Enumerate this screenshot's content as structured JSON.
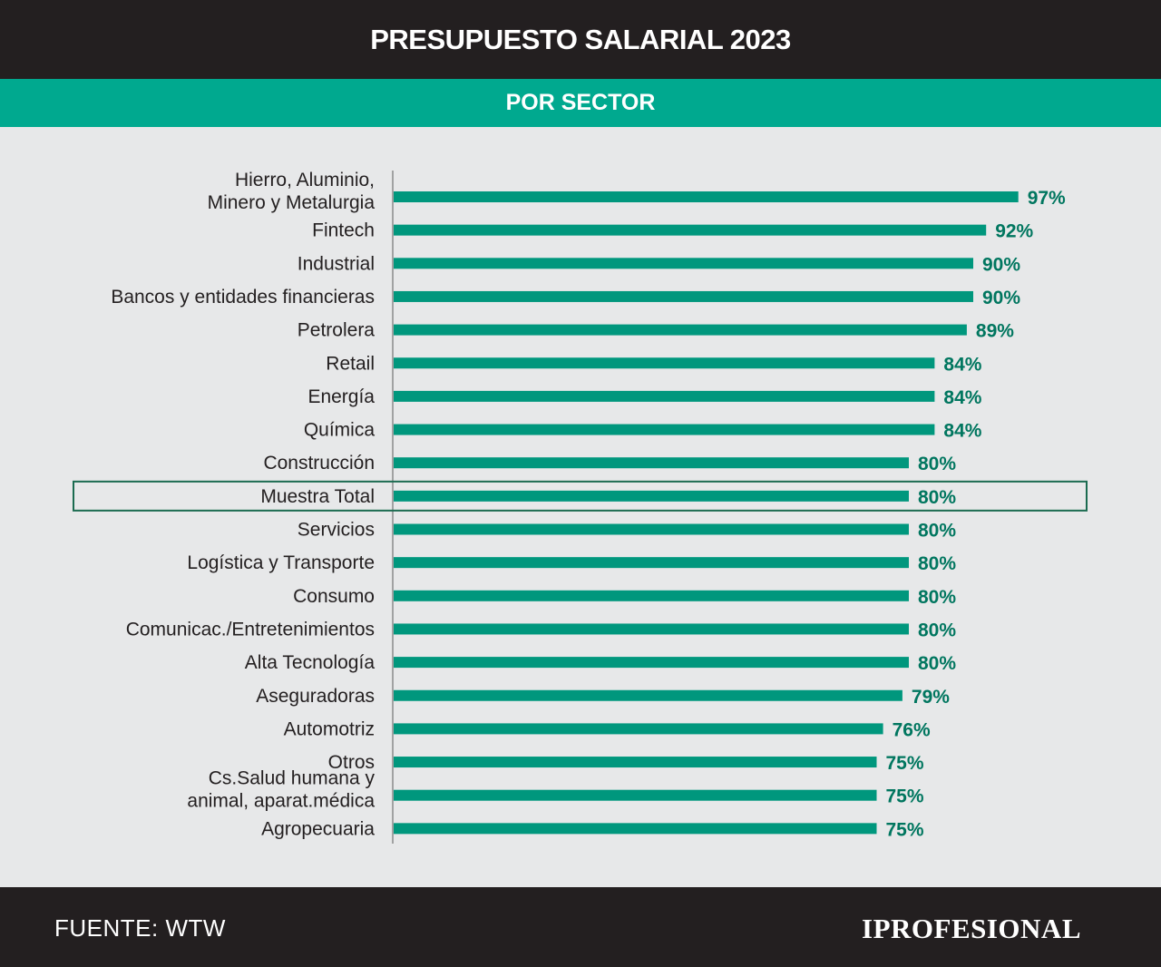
{
  "header": {
    "title": "PRESUPUESTO SALARIAL 2023"
  },
  "subheader": {
    "title": "POR SECTOR"
  },
  "chart_data": {
    "type": "bar",
    "orientation": "horizontal",
    "categories": [
      [
        "Hierro, Aluminio,",
        "Minero y Metalurgia"
      ],
      [
        "Fintech"
      ],
      [
        "Industrial"
      ],
      [
        "Bancos y entidades financieras"
      ],
      [
        "Petrolera"
      ],
      [
        "Retail"
      ],
      [
        "Energía"
      ],
      [
        "Química"
      ],
      [
        "Construcción"
      ],
      [
        "Muestra Total"
      ],
      [
        "Servicios"
      ],
      [
        "Logística y Transporte"
      ],
      [
        "Consumo"
      ],
      [
        "Comunicac./Entretenimientos"
      ],
      [
        "Alta Tecnología"
      ],
      [
        "Aseguradoras"
      ],
      [
        "Automotriz"
      ],
      [
        "Otros"
      ],
      [
        "Cs.Salud humana y",
        "animal, aparat.médica"
      ],
      [
        "Agropecuaria"
      ]
    ],
    "values": [
      97,
      92,
      90,
      90,
      89,
      84,
      84,
      84,
      80,
      80,
      80,
      80,
      80,
      80,
      80,
      79,
      76,
      75,
      75,
      75
    ],
    "value_labels": [
      "97%",
      "92%",
      "90%",
      "90%",
      "89%",
      "84%",
      "84%",
      "84%",
      "80%",
      "80%",
      "80%",
      "80%",
      "80%",
      "80%",
      "80%",
      "79%",
      "76%",
      "75%",
      "75%",
      "75%"
    ],
    "highlight_index": 9,
    "colors": {
      "bar": "#00977d",
      "label": "#00765f",
      "highlight_border": "#1b6b50"
    },
    "grid": false,
    "legend": "none"
  },
  "footer": {
    "source": "FUENTE: WTW",
    "brand": "IPROFESIONAL"
  }
}
